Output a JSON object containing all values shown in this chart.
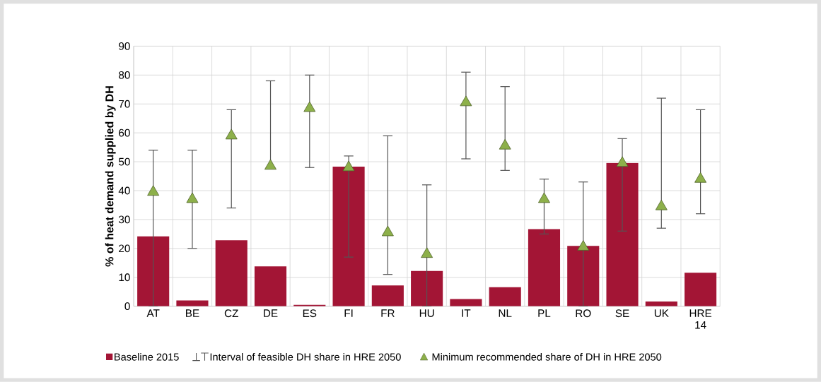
{
  "chart_data": {
    "type": "bar",
    "ylabel": "% of heat demand supplied by DH",
    "categories": [
      "AT",
      "BE",
      "CZ",
      "DE",
      "ES",
      "FI",
      "FR",
      "HU",
      "IT",
      "NL",
      "PL",
      "RO",
      "SE",
      "UK",
      "HRE 14"
    ],
    "series": [
      {
        "name": "Baseline 2015",
        "color": "#a31535",
        "values": [
          24.2,
          2,
          22.8,
          13.8,
          0.5,
          48.3,
          7.2,
          12.2,
          2.5,
          6.6,
          26.7,
          20.9,
          49.6,
          1.6,
          11.6
        ]
      },
      {
        "name": "Minimum recommended share of DH in HRE 2050",
        "type": "scatter",
        "marker": "triangle",
        "color": "#8db04a",
        "values": [
          39.5,
          37,
          59,
          48.5,
          68.5,
          48,
          25.5,
          18,
          70.5,
          55.5,
          37,
          20.5,
          49.5,
          34.5,
          44
        ],
        "errors": [
          [
            0,
            54
          ],
          [
            20,
            54
          ],
          [
            34,
            68
          ],
          [
            48,
            78
          ],
          [
            48,
            80
          ],
          [
            17,
            52
          ],
          [
            11,
            59
          ],
          [
            0,
            42
          ],
          [
            51,
            81
          ],
          [
            47,
            76
          ],
          [
            25,
            44
          ],
          [
            0,
            43
          ],
          [
            26,
            58
          ],
          [
            27,
            72
          ],
          [
            32,
            68
          ]
        ]
      }
    ],
    "annotations": [
      "Interval of feasible DH share in HRE 2050"
    ],
    "ylim": [
      0,
      90
    ],
    "yticks": [
      0,
      10,
      20,
      30,
      40,
      50,
      60,
      70,
      80,
      90
    ],
    "grid": true,
    "legend": "bottom"
  }
}
